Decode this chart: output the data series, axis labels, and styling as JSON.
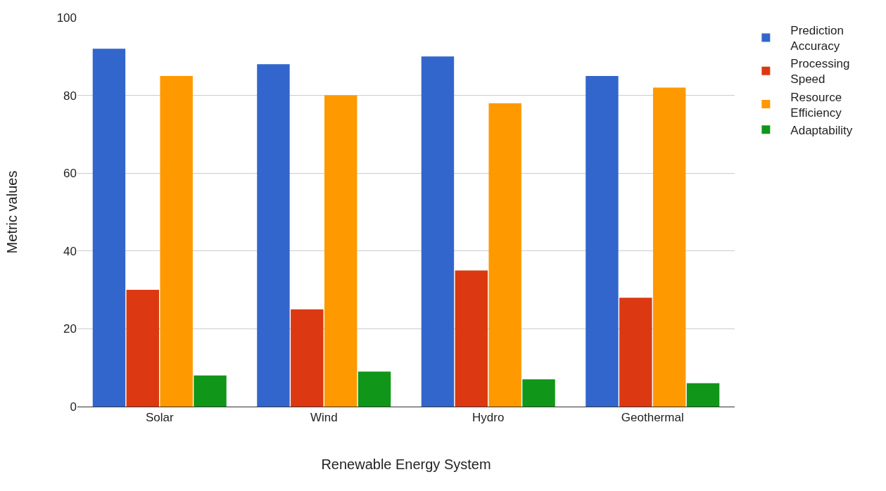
{
  "chart_data": {
    "type": "bar",
    "xlabel": "Renewable Energy System",
    "ylabel": "Metric values",
    "categories": [
      "Solar",
      "Wind",
      "Hydro",
      "Geothermal"
    ],
    "series": [
      {
        "name": "Prediction Accuracy",
        "color": "#3366cc",
        "values": [
          92,
          88,
          90,
          85
        ]
      },
      {
        "name": "Processing Speed",
        "color": "#dc3912",
        "values": [
          30,
          25,
          35,
          28
        ]
      },
      {
        "name": "Resource Efficiency",
        "color": "#ff9900",
        "values": [
          85,
          80,
          78,
          82
        ]
      },
      {
        "name": "Adaptability",
        "color": "#109618",
        "values": [
          8,
          9,
          7,
          6
        ]
      }
    ],
    "ylim": [
      0,
      100
    ],
    "yticks": [
      0,
      20,
      40,
      60,
      80,
      100
    ],
    "grid": "y",
    "legend": "top right"
  }
}
